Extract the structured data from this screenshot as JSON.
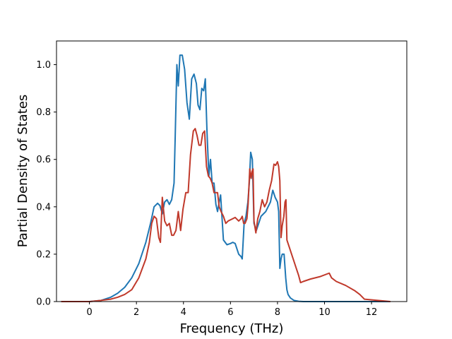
{
  "chart_data": {
    "type": "line",
    "title": "",
    "xlabel": "Frequency (THz)",
    "ylabel": "Partial Density of States",
    "xlim": [
      -1.4,
      13.5
    ],
    "ylim": [
      0,
      1.1
    ],
    "xticks": [
      0,
      2,
      4,
      6,
      8,
      10,
      12
    ],
    "yticks": [
      0.0,
      0.2,
      0.4,
      0.6,
      0.8,
      1.0
    ],
    "xtick_labels": [
      "0",
      "2",
      "4",
      "6",
      "8",
      "10",
      "12"
    ],
    "ytick_labels": [
      "0.0",
      "0.2",
      "0.4",
      "0.6",
      "0.8",
      "1.0"
    ],
    "grid": false,
    "legend": "none",
    "series": [
      {
        "color": "#1f77b4",
        "x": [
          -1.2,
          0,
          0.5,
          0.9,
          1.2,
          1.5,
          1.8,
          2.1,
          2.4,
          2.6,
          2.75,
          2.9,
          3.0,
          3.1,
          3.2,
          3.3,
          3.4,
          3.5,
          3.6,
          3.65,
          3.72,
          3.78,
          3.85,
          3.95,
          4.05,
          4.15,
          4.25,
          4.35,
          4.45,
          4.55,
          4.62,
          4.7,
          4.78,
          4.86,
          4.93,
          5.0,
          5.08,
          5.15,
          5.22,
          5.3,
          5.38,
          5.45,
          5.52,
          5.58,
          5.7,
          5.85,
          6.0,
          6.1,
          6.2,
          6.35,
          6.45,
          6.5,
          6.58,
          6.66,
          6.74,
          6.8,
          6.86,
          6.93,
          7.0,
          7.1,
          7.2,
          7.3,
          7.4,
          7.5,
          7.6,
          7.7,
          7.8,
          7.9,
          7.95,
          8.0,
          8.05,
          8.1,
          8.15,
          8.2,
          8.28,
          8.35,
          8.4,
          8.45,
          8.55,
          8.7,
          8.9,
          9.1,
          9.5,
          10.5,
          11.5,
          11.7,
          12.0,
          12.8
        ],
        "y": [
          0,
          0,
          0.005,
          0.018,
          0.035,
          0.06,
          0.1,
          0.16,
          0.25,
          0.33,
          0.4,
          0.415,
          0.405,
          0.37,
          0.42,
          0.43,
          0.41,
          0.43,
          0.5,
          0.7,
          1.0,
          0.91,
          1.04,
          1.04,
          0.98,
          0.84,
          0.77,
          0.94,
          0.96,
          0.92,
          0.83,
          0.81,
          0.9,
          0.89,
          0.94,
          0.72,
          0.53,
          0.6,
          0.5,
          0.5,
          0.41,
          0.38,
          0.42,
          0.45,
          0.26,
          0.24,
          0.245,
          0.25,
          0.245,
          0.2,
          0.19,
          0.18,
          0.33,
          0.36,
          0.42,
          0.5,
          0.63,
          0.6,
          0.33,
          0.3,
          0.33,
          0.36,
          0.37,
          0.38,
          0.4,
          0.42,
          0.47,
          0.44,
          0.43,
          0.42,
          0.38,
          0.14,
          0.18,
          0.2,
          0.2,
          0.1,
          0.05,
          0.03,
          0.015,
          0.005,
          0.001,
          0,
          0,
          0,
          0,
          0,
          0,
          0
        ]
      },
      {
        "color": "#c0392b",
        "x": [
          -1.2,
          0,
          0.5,
          0.9,
          1.2,
          1.5,
          1.8,
          2.1,
          2.4,
          2.55,
          2.65,
          2.75,
          2.85,
          2.95,
          3.02,
          3.1,
          3.2,
          3.3,
          3.4,
          3.5,
          3.58,
          3.68,
          3.78,
          3.88,
          3.98,
          4.1,
          4.2,
          4.3,
          4.42,
          4.5,
          4.58,
          4.66,
          4.74,
          4.82,
          4.9,
          4.98,
          5.06,
          5.14,
          5.22,
          5.3,
          5.38,
          5.45,
          5.52,
          5.6,
          5.7,
          5.8,
          5.9,
          6.0,
          6.1,
          6.2,
          6.35,
          6.45,
          6.5,
          6.56,
          6.62,
          6.7,
          6.75,
          6.82,
          6.88,
          6.92,
          6.96,
          7.0,
          7.08,
          7.16,
          7.25,
          7.35,
          7.45,
          7.55,
          7.65,
          7.75,
          7.85,
          7.92,
          8.0,
          8.05,
          8.1,
          8.15,
          8.2,
          8.27,
          8.32,
          8.36,
          8.4,
          8.5,
          8.6,
          8.7,
          8.8,
          8.9,
          8.98,
          9.1,
          9.4,
          9.8,
          10.2,
          10.3,
          10.5,
          10.9,
          11.3,
          11.5,
          11.7,
          12.8
        ],
        "y": [
          0,
          0,
          0.005,
          0.01,
          0.018,
          0.03,
          0.05,
          0.1,
          0.18,
          0.25,
          0.33,
          0.36,
          0.35,
          0.27,
          0.25,
          0.44,
          0.34,
          0.32,
          0.33,
          0.28,
          0.28,
          0.3,
          0.38,
          0.3,
          0.39,
          0.46,
          0.46,
          0.62,
          0.72,
          0.73,
          0.7,
          0.66,
          0.66,
          0.71,
          0.72,
          0.57,
          0.53,
          0.52,
          0.5,
          0.46,
          0.46,
          0.46,
          0.4,
          0.38,
          0.36,
          0.33,
          0.34,
          0.345,
          0.35,
          0.355,
          0.34,
          0.35,
          0.36,
          0.33,
          0.33,
          0.35,
          0.41,
          0.56,
          0.52,
          0.55,
          0.56,
          0.34,
          0.29,
          0.35,
          0.38,
          0.43,
          0.4,
          0.42,
          0.47,
          0.51,
          0.58,
          0.575,
          0.59,
          0.57,
          0.51,
          0.27,
          0.32,
          0.36,
          0.42,
          0.43,
          0.26,
          0.23,
          0.2,
          0.17,
          0.14,
          0.11,
          0.08,
          0.085,
          0.095,
          0.105,
          0.12,
          0.1,
          0.085,
          0.068,
          0.045,
          0.03,
          0.01,
          0
        ]
      }
    ]
  }
}
